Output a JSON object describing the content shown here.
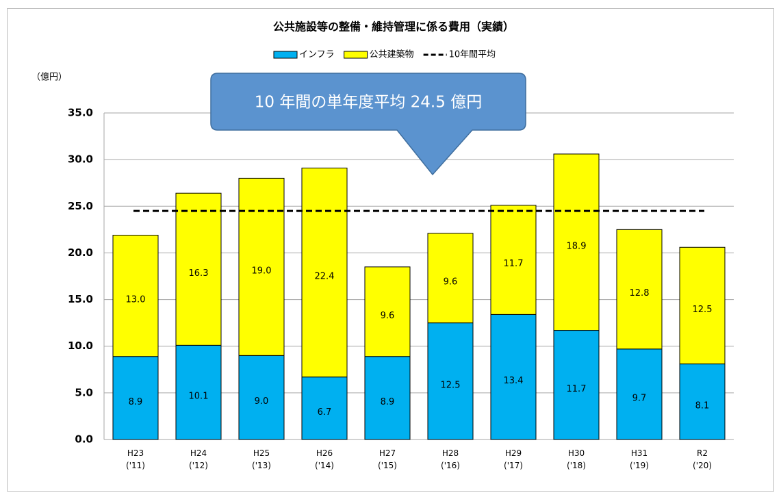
{
  "chart_data": {
    "type": "stacked_bar",
    "title": "公共施設等の整備・維持管理に係る費用（実績）",
    "y_label": "（億円）",
    "annotation": "10 年間の単年度平均 24.5 億円",
    "categories": [
      "H23\n('11)",
      "H24\n('12)",
      "H25\n('13)",
      "H26\n('14)",
      "H27\n('15)",
      "H28\n('16)",
      "H29\n('17)",
      "H30\n('18)",
      "H31\n('19)",
      "R2\n('20)"
    ],
    "series": [
      {
        "name": "インフラ",
        "color": "#00b0f0",
        "values": [
          8.9,
          10.1,
          9.0,
          6.7,
          8.9,
          12.5,
          13.4,
          11.7,
          9.7,
          8.1
        ],
        "value_labels": [
          "8.9",
          "10.1",
          "9.0",
          "6.7",
          "8.9",
          "12.5",
          "13.4",
          "11.7",
          "9.7",
          "8.1"
        ]
      },
      {
        "name": "公共建築物",
        "color": "#ffff00",
        "values": [
          13.0,
          16.3,
          19.0,
          22.4,
          9.6,
          9.6,
          11.7,
          18.9,
          12.8,
          12.5
        ],
        "value_labels": [
          "13.0",
          "16.3",
          "19.0",
          "22.4",
          "9.6",
          "9.6",
          "11.7",
          "18.9",
          "12.8",
          "12.5"
        ]
      }
    ],
    "average": {
      "name": "10年間平均",
      "value": 24.5,
      "color": "#000000"
    },
    "ylim": [
      0,
      35
    ],
    "yticks": [
      {
        "value": 0,
        "label": "0.0"
      },
      {
        "value": 5,
        "label": "5.0"
      },
      {
        "value": 10,
        "label": "10.0"
      },
      {
        "value": 15,
        "label": "15.0"
      },
      {
        "value": 20,
        "label": "20.0"
      },
      {
        "value": 25,
        "label": "25.0"
      },
      {
        "value": 30,
        "label": "30.0"
      },
      {
        "value": 35,
        "label": "35.0"
      }
    ],
    "grid": true,
    "legend": "top"
  }
}
